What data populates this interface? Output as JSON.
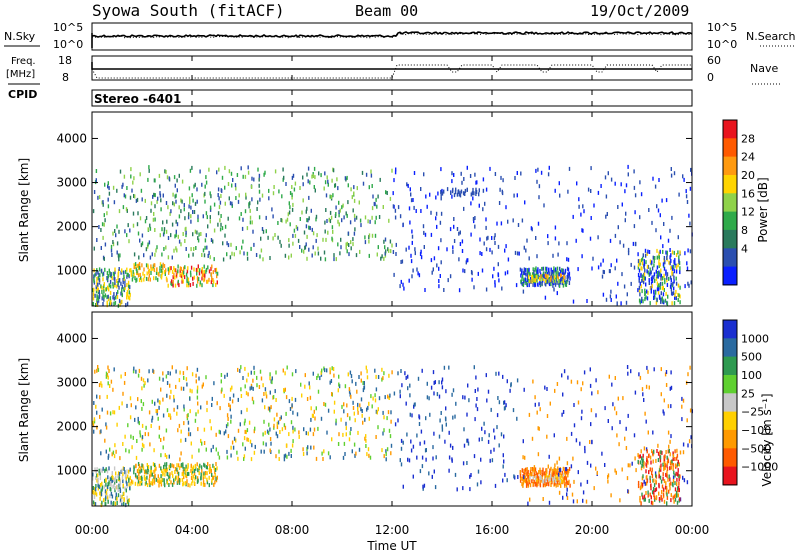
{
  "header": {
    "station": "Syowa South (fitACF)",
    "beam": "Beam 00",
    "date": "19/Oct/2009"
  },
  "top_panels": {
    "nsky_label": "N.Sky",
    "nsky_ticks": [
      "10^5",
      "10^0"
    ],
    "nsearch_label": "N.Search",
    "nsearch_ticks": [
      "10^5",
      "10^0"
    ],
    "freq_label_line1": "Freq.",
    "freq_label_line2": "[MHz]",
    "freq_ticks": [
      "18",
      "8"
    ],
    "nave_label": "Nave",
    "nave_ticks": [
      "60",
      "0"
    ],
    "cpid_label": "CPID",
    "cpid_value": "Stereo -6401"
  },
  "time_axis": {
    "label": "Time UT",
    "ticks": [
      "00:00",
      "04:00",
      "08:00",
      "12:00",
      "16:00",
      "20:00",
      "00:00"
    ]
  },
  "chart_data": [
    {
      "type": "heatmap",
      "name": "power",
      "xlabel": "Time UT",
      "ylabel": "Slant Range [km]",
      "x_unit": "hours UT",
      "xlim": [
        0,
        24
      ],
      "ylim": [
        200,
        4600
      ],
      "yticks": [
        1000,
        2000,
        3000,
        4000
      ],
      "ytick_labels": [
        "1000",
        "2000",
        "3000",
        "4000"
      ],
      "colorbar": {
        "label": "Power [dB]",
        "tick_labels": [
          "28",
          "24",
          "20",
          "16",
          "12",
          "8",
          "4"
        ],
        "colors_top_to_bottom": [
          "#e8141e",
          "#ff5a00",
          "#ff9a10",
          "#ffd400",
          "#8fd24a",
          "#2faa4a",
          "#2a7a5c",
          "#2b4fb0",
          "#0a20ff"
        ]
      },
      "regions": [
        {
          "t": [
            0,
            1.5
          ],
          "r": [
            250,
            1100
          ],
          "density": 0.55,
          "colors": [
            "#2b4fb0",
            "#2faa4a",
            "#ffd400"
          ]
        },
        {
          "t": [
            1.5,
            3
          ],
          "r": [
            800,
            1200
          ],
          "density": 0.45,
          "colors": [
            "#2faa4a",
            "#ffd400",
            "#ff9a10"
          ]
        },
        {
          "t": [
            3,
            5
          ],
          "r": [
            700,
            1150
          ],
          "density": 0.5,
          "colors": [
            "#ff9a10",
            "#ffd400",
            "#e8141e",
            "#2faa4a"
          ]
        },
        {
          "t": [
            0,
            12
          ],
          "r": [
            1300,
            3400
          ],
          "density": 0.09,
          "colors": [
            "#2faa4a",
            "#2b4fb0",
            "#8fd24a",
            "#2a7a5c"
          ]
        },
        {
          "t": [
            12,
            17
          ],
          "r": [
            600,
            3400
          ],
          "density": 0.05,
          "colors": [
            "#2b4fb0",
            "#0a20ff"
          ]
        },
        {
          "t": [
            13.9,
            15.5
          ],
          "r": [
            2750,
            2900
          ],
          "density": 0.5,
          "colors": [
            "#2b4fb0"
          ]
        },
        {
          "t": [
            17.1,
            19.1
          ],
          "r": [
            700,
            1100
          ],
          "density": 0.85,
          "colors": [
            "#2b4fb0",
            "#0a20ff",
            "#2faa4a"
          ]
        },
        {
          "t": [
            17.4,
            18.9
          ],
          "r": [
            800,
            950
          ],
          "density": 0.7,
          "colors": [
            "#ffd400",
            "#8fd24a",
            "#ff9a10"
          ]
        },
        {
          "t": [
            17,
            24
          ],
          "r": [
            300,
            3400
          ],
          "density": 0.03,
          "colors": [
            "#2b4fb0",
            "#0a20ff"
          ]
        },
        {
          "t": [
            21.8,
            23.5
          ],
          "r": [
            300,
            1500
          ],
          "density": 0.4,
          "colors": [
            "#2b4fb0",
            "#0a20ff",
            "#2faa4a",
            "#ffd400"
          ]
        }
      ]
    },
    {
      "type": "heatmap",
      "name": "velocity",
      "xlabel": "Time UT",
      "ylabel": "Slant Range [km]",
      "x_unit": "hours UT",
      "xlim": [
        0,
        24
      ],
      "ylim": [
        200,
        4600
      ],
      "yticks": [
        1000,
        2000,
        3000,
        4000
      ],
      "ytick_labels": [
        "1000",
        "2000",
        "3000",
        "4000"
      ],
      "colorbar": {
        "label": "Velocity [m s⁻¹]",
        "tick_labels": [
          "1000",
          "500",
          "100",
          "25",
          "−25",
          "−100",
          "−500",
          "−1000"
        ],
        "colors_top_to_bottom": [
          "#1a2fd0",
          "#2a6aa0",
          "#2e9a50",
          "#5fd030",
          "#c8c8c8",
          "#ffd000",
          "#ff9a00",
          "#ff5a00",
          "#e8141e"
        ]
      },
      "regions": [
        {
          "t": [
            0,
            1.5
          ],
          "r": [
            250,
            1100
          ],
          "density": 0.55,
          "colors": [
            "#2e9a50",
            "#2a6aa0",
            "#ffd000",
            "#c8c8c8"
          ]
        },
        {
          "t": [
            1.5,
            5
          ],
          "r": [
            700,
            1200
          ],
          "density": 0.5,
          "colors": [
            "#ffd000",
            "#ff9a00",
            "#2e9a50"
          ]
        },
        {
          "t": [
            0,
            12
          ],
          "r": [
            1300,
            3400
          ],
          "density": 0.09,
          "colors": [
            "#ff9a00",
            "#ffd000",
            "#2a6aa0",
            "#5fd030"
          ]
        },
        {
          "t": [
            12,
            17
          ],
          "r": [
            600,
            3400
          ],
          "density": 0.05,
          "colors": [
            "#1a2fd0",
            "#2a6aa0"
          ]
        },
        {
          "t": [
            17.1,
            19.1
          ],
          "r": [
            700,
            1100
          ],
          "density": 0.85,
          "colors": [
            "#ff9a00",
            "#ff5a00"
          ]
        },
        {
          "t": [
            17.4,
            18.9
          ],
          "r": [
            800,
            950
          ],
          "density": 0.5,
          "colors": [
            "#c8c8c8",
            "#ffd000"
          ]
        },
        {
          "t": [
            17,
            24
          ],
          "r": [
            300,
            3400
          ],
          "density": 0.03,
          "colors": [
            "#1a2fd0",
            "#ff9a00"
          ]
        },
        {
          "t": [
            21.8,
            23.5
          ],
          "r": [
            300,
            1500
          ],
          "density": 0.4,
          "colors": [
            "#ff9a00",
            "#ff5a00",
            "#e8141e",
            "#2e9a50"
          ]
        }
      ]
    }
  ]
}
